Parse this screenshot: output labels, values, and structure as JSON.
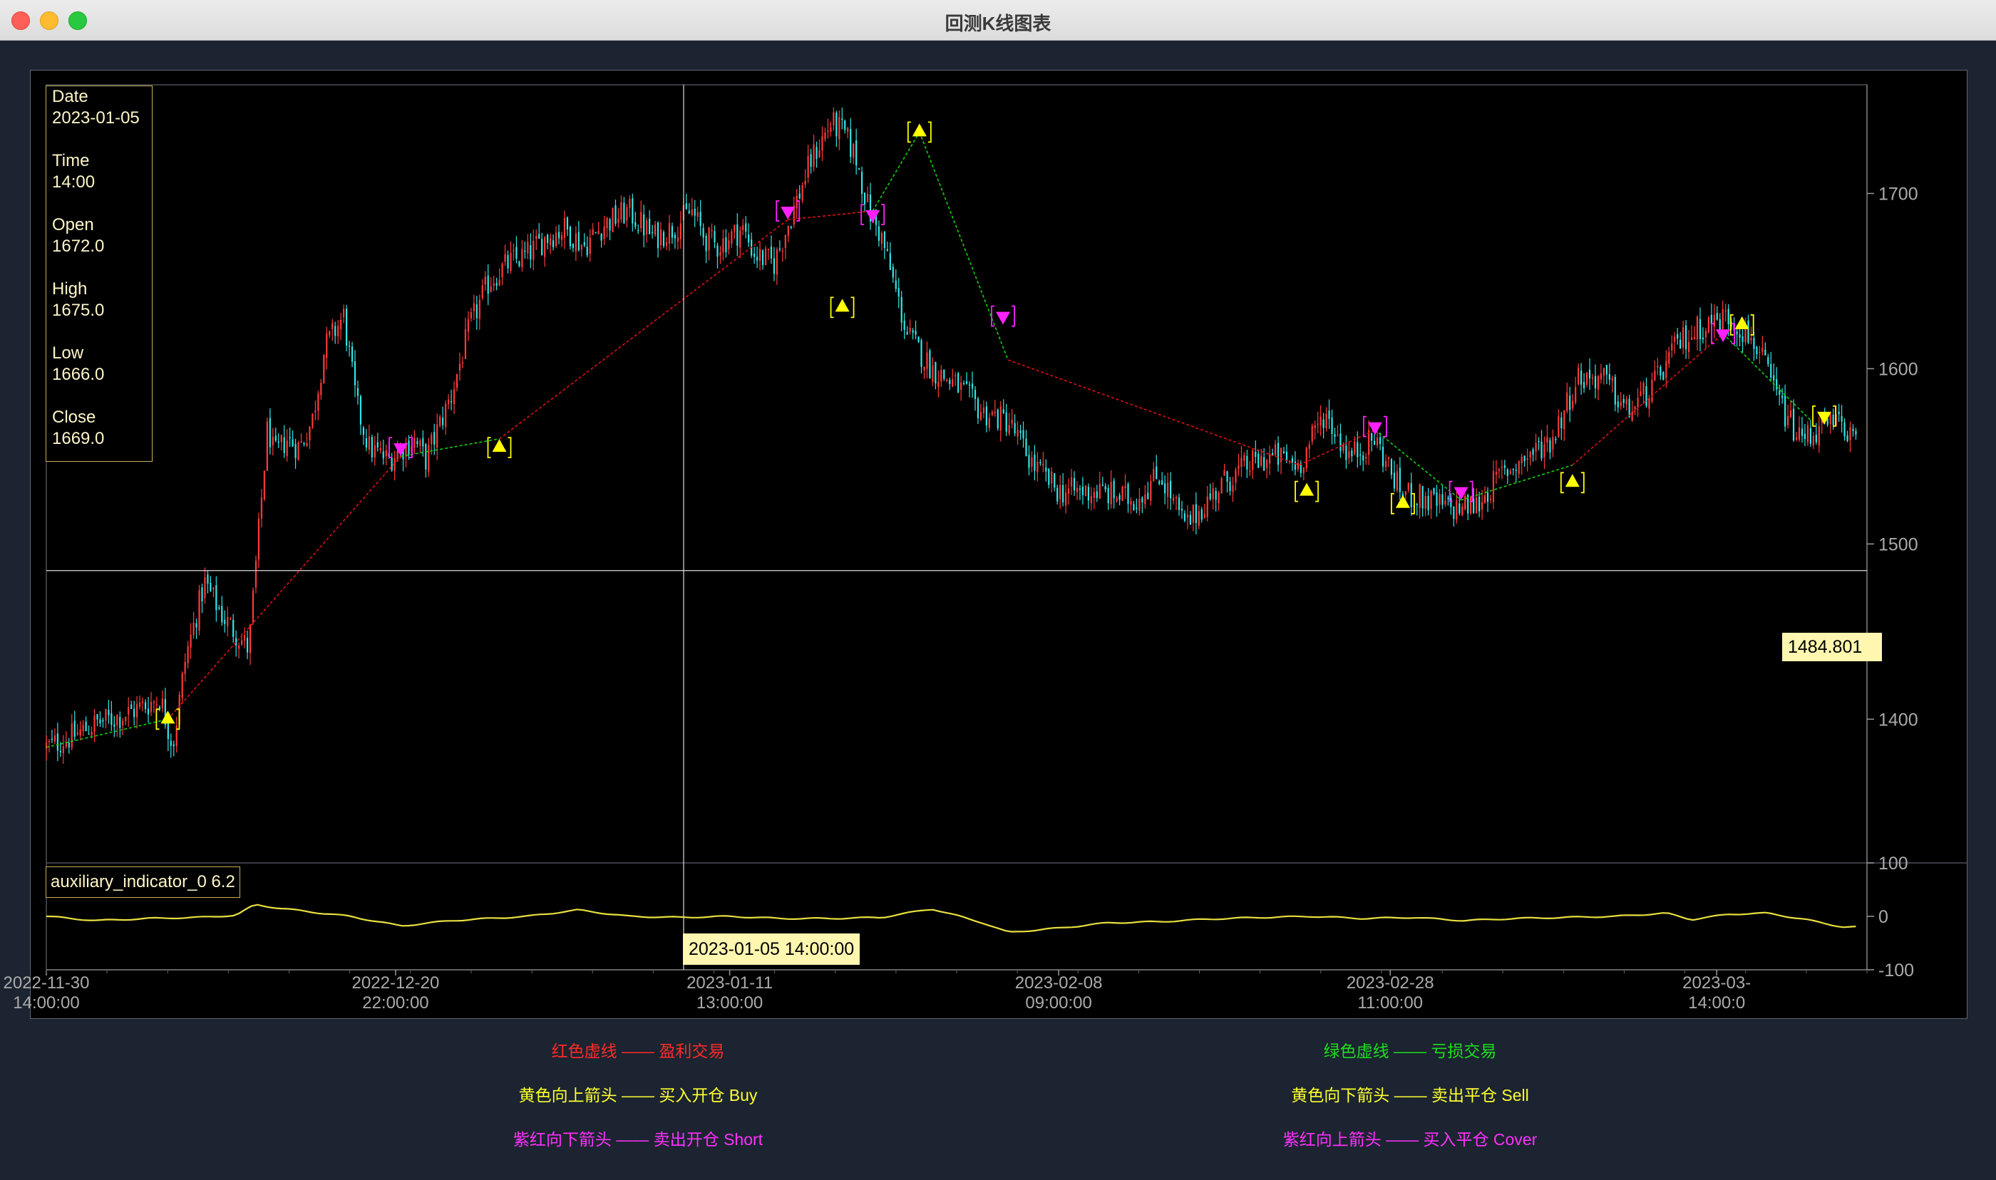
{
  "window": {
    "title": "回测K线图表"
  },
  "colors": {
    "background": "#000000",
    "up": "#ff3a3a",
    "down": "#33e6e6",
    "profit_line": "#e01010",
    "loss_line": "#10d010",
    "buy_sell": "#ffff00",
    "short_cover": "#ff20ff",
    "indicator": "#e8e040",
    "crosshair": "#dddddd"
  },
  "info": {
    "date_label": "Date",
    "date": "2023-01-05",
    "time_label": "Time",
    "time": "14:00",
    "open_label": "Open",
    "open": "1672.0",
    "high_label": "High",
    "high": "1675.0",
    "low_label": "Low",
    "low": "1666.0",
    "close_label": "Close",
    "close": "1669.0"
  },
  "indicator": {
    "label": "auxiliary_indicator_0 6.2"
  },
  "crosshair": {
    "price_label": "1484.801",
    "price": 1484.8,
    "time_label": "2023-01-05 14:00:00",
    "time_index": 240
  },
  "legend": [
    {
      "text": "红色虚线 —— 盈利交易",
      "color": "#ff2a2a"
    },
    {
      "text": "绿色虚线 —— 亏损交易",
      "color": "#20dd20"
    },
    {
      "text": "黄色向上箭头 —— 买入开仓 Buy",
      "color": "#ffff30"
    },
    {
      "text": "黄色向下箭头 —— 卖出平仓 Sell",
      "color": "#ffff30"
    },
    {
      "text": "紫红向下箭头 —— 卖出开仓 Short",
      "color": "#ff30ff"
    },
    {
      "text": "紫红向上箭头 —— 买入平仓 Cover",
      "color": "#ff30ff"
    }
  ],
  "chart_data": {
    "type": "candlestick",
    "main_panel": {
      "ylim": [
        1318,
        1762
      ],
      "yticks": [
        1400,
        1500,
        1600,
        1700
      ],
      "candle_count": 640,
      "close_path": [
        [
          0,
          1384
        ],
        [
          20,
          1390
        ],
        [
          40,
          1398
        ],
        [
          60,
          1402
        ],
        [
          75,
          1407
        ],
        [
          90,
          1412
        ],
        [
          100,
          1385
        ],
        [
          110,
          1435
        ],
        [
          125,
          1478
        ],
        [
          140,
          1458
        ],
        [
          160,
          1440
        ],
        [
          175,
          1568
        ],
        [
          180,
          1550
        ],
        [
          190,
          1560
        ],
        [
          200,
          1555
        ],
        [
          210,
          1570
        ],
        [
          220,
          1612
        ],
        [
          235,
          1630
        ],
        [
          245,
          1580
        ],
        [
          255,
          1555
        ],
        [
          270,
          1548
        ],
        [
          290,
          1560
        ],
        [
          300,
          1548
        ],
        [
          320,
          1585
        ],
        [
          335,
          1625
        ],
        [
          350,
          1650
        ],
        [
          365,
          1660
        ],
        [
          380,
          1665
        ],
        [
          395,
          1675
        ],
        [
          410,
          1680
        ],
        [
          425,
          1670
        ],
        [
          440,
          1682
        ],
        [
          460,
          1690
        ],
        [
          480,
          1675
        ],
        [
          495,
          1680
        ],
        [
          510,
          1690
        ],
        [
          520,
          1675
        ],
        [
          530,
          1670
        ],
        [
          550,
          1680
        ],
        [
          560,
          1665
        ],
        [
          575,
          1660
        ],
        [
          590,
          1690
        ],
        [
          605,
          1720
        ],
        [
          620,
          1740
        ],
        [
          630,
          1735
        ],
        [
          640,
          1720
        ],
        [
          650,
          1690
        ],
        [
          660,
          1675
        ],
        [
          680,
          1620
        ],
        [
          700,
          1600
        ],
        [
          720,
          1590
        ],
        [
          740,
          1575
        ],
        [
          760,
          1570
        ],
        [
          780,
          1545
        ],
        [
          800,
          1530
        ],
        [
          830,
          1530
        ],
        [
          860,
          1525
        ],
        [
          880,
          1540
        ],
        [
          900,
          1510
        ],
        [
          930,
          1535
        ],
        [
          950,
          1545
        ],
        [
          970,
          1550
        ],
        [
          990,
          1545
        ],
        [
          1010,
          1575
        ],
        [
          1030,
          1550
        ],
        [
          1050,
          1560
        ],
        [
          1070,
          1530
        ],
        [
          1090,
          1525
        ],
        [
          1110,
          1520
        ],
        [
          1130,
          1522
        ],
        [
          1150,
          1540
        ],
        [
          1170,
          1550
        ],
        [
          1190,
          1560
        ],
        [
          1210,
          1595
        ],
        [
          1230,
          1595
        ],
        [
          1250,
          1575
        ],
        [
          1270,
          1590
        ],
        [
          1290,
          1615
        ],
        [
          1310,
          1625
        ],
        [
          1330,
          1630
        ],
        [
          1350,
          1615
        ],
        [
          1370,
          1580
        ],
        [
          1385,
          1560
        ],
        [
          1400,
          1565
        ],
        [
          1420,
          1570
        ],
        [
          1430,
          1555
        ]
      ],
      "trade_lines": [
        {
          "type": "loss",
          "from": [
            0,
            1384
          ],
          "to": [
            96,
            1400
          ]
        },
        {
          "type": "profit",
          "from": [
            96,
            1400
          ],
          "to": [
            280,
            1550
          ]
        },
        {
          "type": "loss",
          "from": [
            280,
            1550
          ],
          "to": [
            358,
            1560
          ]
        },
        {
          "type": "profit",
          "from": [
            358,
            1560
          ],
          "to": [
            586,
            1685
          ]
        },
        {
          "type": "profit",
          "from": [
            586,
            1685
          ],
          "to": [
            653,
            1690
          ]
        },
        {
          "type": "loss",
          "from": [
            653,
            1690
          ],
          "to": [
            690,
            1735
          ]
        },
        {
          "type": "loss",
          "from": [
            690,
            1735
          ],
          "to": [
            760,
            1605
          ]
        },
        {
          "type": "profit",
          "from": [
            760,
            1605
          ],
          "to": [
            990,
            1545
          ]
        },
        {
          "type": "profit",
          "from": [
            990,
            1545
          ],
          "to": [
            1050,
            1565
          ]
        },
        {
          "type": "loss",
          "from": [
            1050,
            1565
          ],
          "to": [
            1118,
            1525
          ]
        },
        {
          "type": "loss",
          "from": [
            1118,
            1525
          ],
          "to": [
            1206,
            1545
          ]
        },
        {
          "type": "profit",
          "from": [
            1206,
            1545
          ],
          "to": [
            1325,
            1620
          ]
        },
        {
          "type": "loss",
          "from": [
            1325,
            1620
          ],
          "to": [
            1395,
            1570
          ]
        }
      ],
      "signals": [
        {
          "kind": "buy",
          "x": 96,
          "price": 1400
        },
        {
          "kind": "short",
          "x": 280,
          "price": 1555
        },
        {
          "kind": "buy",
          "x": 358,
          "price": 1555
        },
        {
          "kind": "short",
          "x": 586,
          "price": 1690
        },
        {
          "kind": "buy",
          "x": 629,
          "price": 1635
        },
        {
          "kind": "short",
          "x": 653,
          "price": 1688
        },
        {
          "kind": "buy",
          "x": 690,
          "price": 1735
        },
        {
          "kind": "short",
          "x": 756,
          "price": 1630
        },
        {
          "kind": "buy",
          "x": 996,
          "price": 1530
        },
        {
          "kind": "short",
          "x": 1050,
          "price": 1567
        },
        {
          "kind": "buy",
          "x": 1072,
          "price": 1523
        },
        {
          "kind": "short",
          "x": 1118,
          "price": 1530
        },
        {
          "kind": "buy",
          "x": 1206,
          "price": 1535
        },
        {
          "kind": "short",
          "x": 1325,
          "price": 1620
        },
        {
          "kind": "buy",
          "x": 1340,
          "price": 1625
        },
        {
          "kind": "sell",
          "x": 1405,
          "price": 1573
        }
      ]
    },
    "indicator_panel": {
      "ylim": [
        -100,
        100
      ],
      "yticks": [
        100,
        0,
        -100
      ],
      "path": [
        [
          0,
          0
        ],
        [
          40,
          -8
        ],
        [
          80,
          -4
        ],
        [
          120,
          -2
        ],
        [
          150,
          2
        ],
        [
          165,
          22
        ],
        [
          185,
          15
        ],
        [
          210,
          8
        ],
        [
          240,
          0
        ],
        [
          280,
          -18
        ],
        [
          320,
          -8
        ],
        [
          380,
          0
        ],
        [
          420,
          12
        ],
        [
          460,
          0
        ],
        [
          500,
          -2
        ],
        [
          540,
          0
        ],
        [
          580,
          -4
        ],
        [
          620,
          -4
        ],
        [
          660,
          -2
        ],
        [
          700,
          14
        ],
        [
          740,
          -12
        ],
        [
          760,
          -30
        ],
        [
          800,
          -22
        ],
        [
          840,
          -12
        ],
        [
          880,
          -10
        ],
        [
          920,
          -5
        ],
        [
          960,
          -2
        ],
        [
          1000,
          0
        ],
        [
          1040,
          -4
        ],
        [
          1080,
          -2
        ],
        [
          1120,
          -8
        ],
        [
          1160,
          -4
        ],
        [
          1200,
          -2
        ],
        [
          1240,
          0
        ],
        [
          1280,
          6
        ],
        [
          1300,
          -6
        ],
        [
          1330,
          4
        ],
        [
          1360,
          6
        ],
        [
          1390,
          -6
        ],
        [
          1420,
          -20
        ]
      ]
    },
    "x_ticks": [
      {
        "x": 0,
        "date": "2022-11-30",
        "time": "14:00:00"
      },
      {
        "x": 276,
        "date": "2022-12-20",
        "time": "22:00:00"
      },
      {
        "x": 540,
        "date": "2023-01-11",
        "time": "13:00:00"
      },
      {
        "x": 800,
        "date": "2023-02-08",
        "time": "09:00:00"
      },
      {
        "x": 1062,
        "date": "2023-02-28",
        "time": "11:00:00"
      },
      {
        "x": 1320,
        "date": "2023-03-",
        "time": "14:00:0"
      }
    ]
  }
}
